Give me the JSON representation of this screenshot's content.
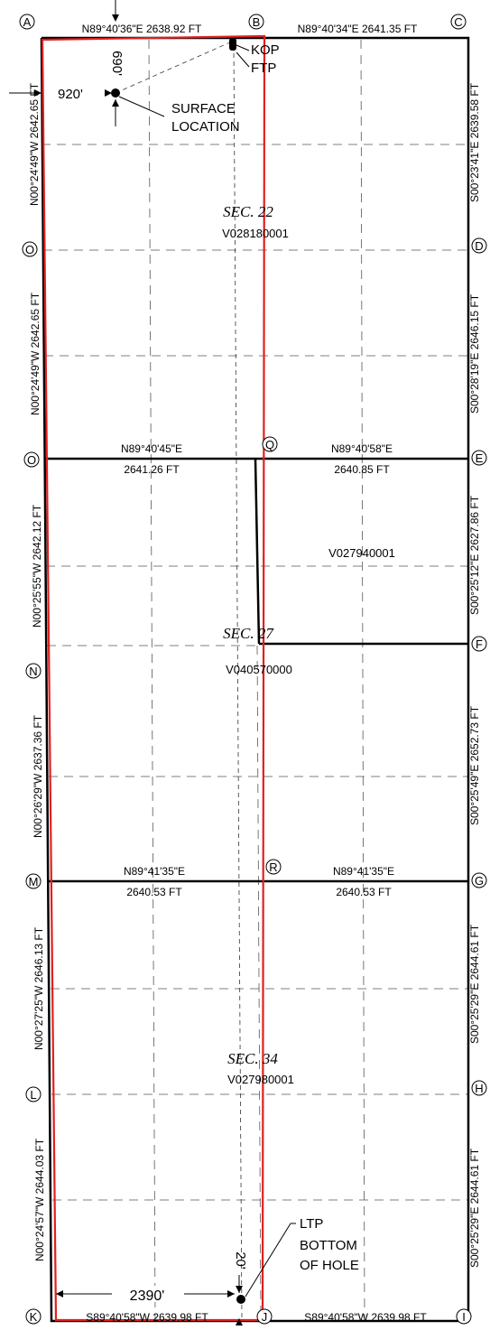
{
  "corners": [
    {
      "id": "A",
      "letter": "A"
    },
    {
      "id": "B",
      "letter": "B"
    },
    {
      "id": "C",
      "letter": "C"
    },
    {
      "id": "D",
      "letter": "D"
    },
    {
      "id": "E",
      "letter": "E"
    },
    {
      "id": "F",
      "letter": "F"
    },
    {
      "id": "G",
      "letter": "G"
    },
    {
      "id": "H",
      "letter": "H"
    },
    {
      "id": "I",
      "letter": "I"
    },
    {
      "id": "J",
      "letter": "J"
    },
    {
      "id": "K",
      "letter": "K"
    },
    {
      "id": "L",
      "letter": "L"
    },
    {
      "id": "M",
      "letter": "M"
    },
    {
      "id": "N",
      "letter": "N"
    },
    {
      "id": "O1",
      "letter": "O"
    },
    {
      "id": "O2",
      "letter": "O"
    },
    {
      "id": "Q",
      "letter": "Q"
    },
    {
      "id": "R",
      "letter": "R"
    }
  ],
  "sections": {
    "s22": {
      "title": "SEC.  22",
      "lease": "V028180001"
    },
    "s27": {
      "title": "SEC.  27",
      "lease": "V040570000"
    },
    "s34": {
      "title": "SEC.  34",
      "lease": "V027980001"
    },
    "q_lease": "V027940001"
  },
  "calls": {
    "top_ab": "N89°40'36\"E  2638.92  FT",
    "top_bc": "N89°40'34\"E  2641.35  FT",
    "mid_oq_bearing": "N89°40'45\"E",
    "mid_oq_dist": "2641.26  FT",
    "mid_qe_bearing": "N89°40'58\"E",
    "mid_qe_dist": "2640.85  FT",
    "mid_mr_bearing": "N89°41'35\"E",
    "mid_mr_dist": "2640.53  FT",
    "mid_rg_bearing": "N89°41'35\"E",
    "mid_rg_dist": "2640.53  FT",
    "bot_kj": "S89°40'58\"W  2639.98  FT",
    "bot_ji": "S89°40'58\"W  2639.98  FT",
    "left_1": "N00°24'49\"W  2642.65  FT",
    "left_2": "N00°24'49\"W  2642.65  FT",
    "left_3": "N00°25'55\"W  2642.12  FT",
    "left_4": "N00°26'29\"W  2637.36  FT",
    "left_5": "N00°27'25\"W  2646.13  FT",
    "left_6": "N00°24'57\"W  2644.03  FT",
    "right_1": "S00°23'41\"E  2639.58  FT",
    "right_2": "S00°28'19\"E  2646.15  FT",
    "right_3": "S00°25'12\"E  2627.86  FT",
    "right_4": "S00°25'49\"E  2652.73  FT",
    "right_5": "S00°25'29\"E  2644.61  FT",
    "right_6": "S00°25'29\"E  2644.61  FT"
  },
  "well": {
    "offset_west": "920'",
    "offset_north": "690'",
    "surface_label_1": "SURFACE",
    "surface_label_2": "LOCATION",
    "kop": "KOP",
    "ftp": "FTP",
    "ltp": "LTP",
    "bottom_1": "BOTTOM",
    "bottom_2": "OF  HOLE",
    "offset_bottom": "2390'",
    "offset_south": "20'"
  },
  "colors": {
    "boundary": "#000000",
    "lease_outline": "#e02020",
    "grid": "#555555"
  }
}
